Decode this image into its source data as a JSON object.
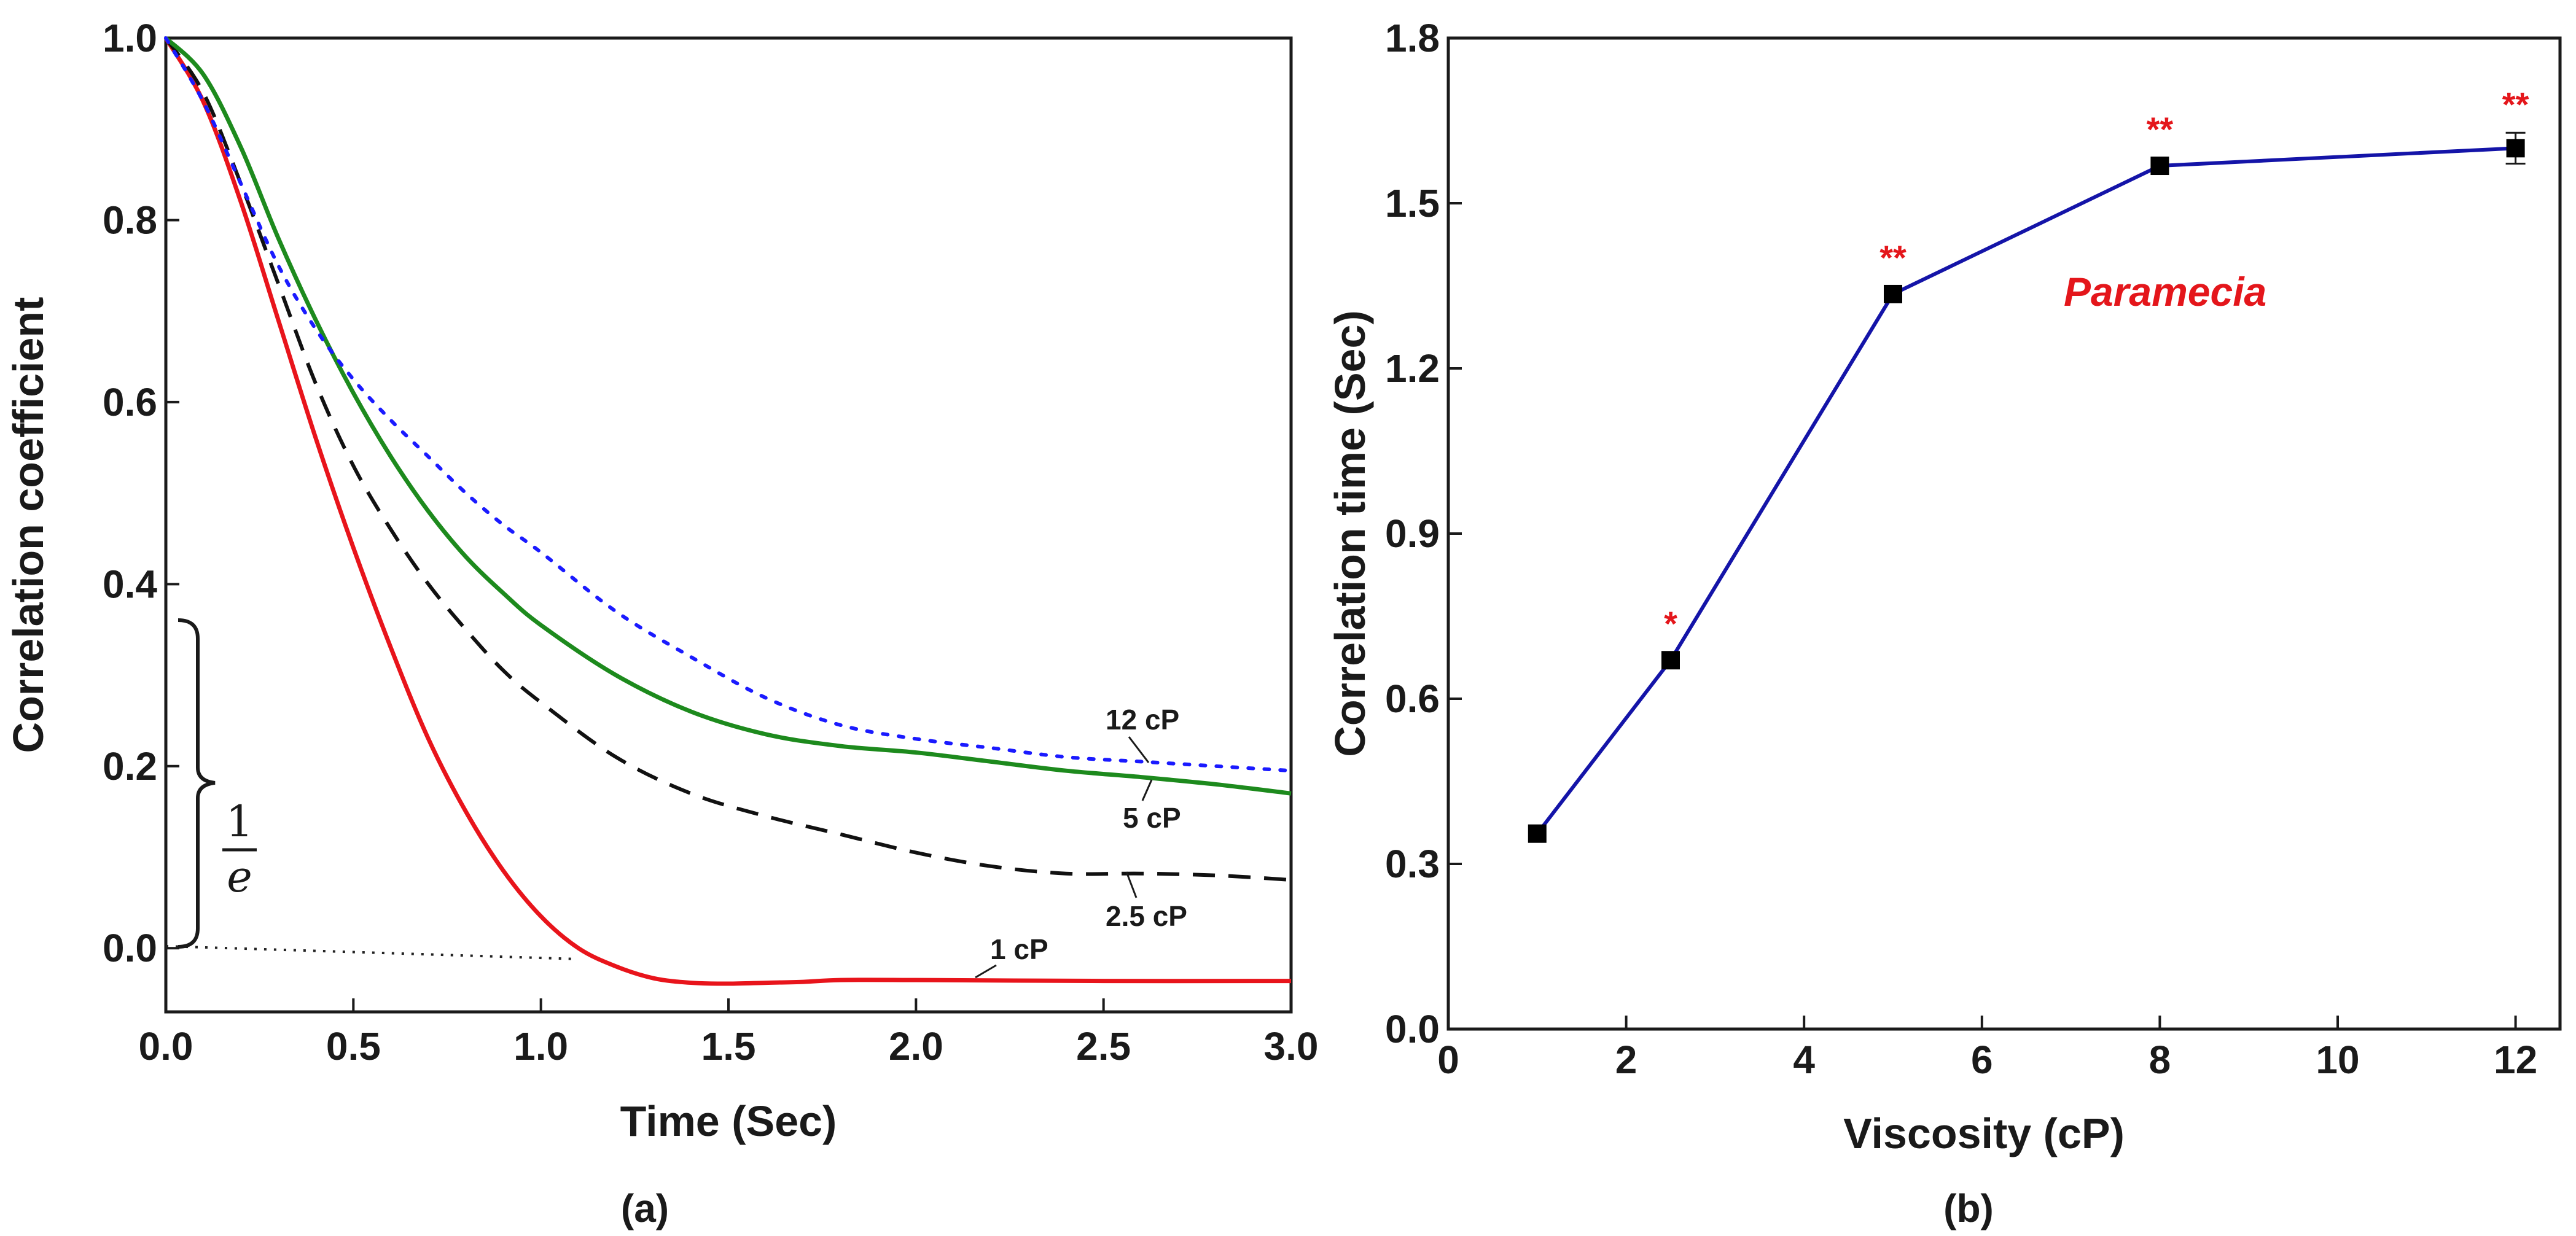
{
  "chart_data": [
    {
      "type": "line",
      "panel_label": "(a)",
      "xlabel": "Time (Sec)",
      "ylabel": "Correlation coefficient",
      "xlim": [
        0.0,
        3.0
      ],
      "ylim": [
        -0.07,
        1.0
      ],
      "xticks": [
        "0.0",
        "0.5",
        "1.0",
        "1.5",
        "2.0",
        "2.5",
        "3.0"
      ],
      "yticks": [
        "0.0",
        "0.2",
        "0.4",
        "0.6",
        "0.8",
        "1.0"
      ],
      "annotation": {
        "fraction_numerator": "1",
        "fraction_denominator": "e"
      },
      "series": [
        {
          "name": "1 cP",
          "color": "#e8141b",
          "style": "solid",
          "x": [
            0,
            0.1,
            0.2,
            0.3,
            0.4,
            0.5,
            0.6,
            0.7,
            0.8,
            0.9,
            1.0,
            1.1,
            1.2,
            1.3,
            1.4,
            1.5,
            1.6,
            1.7,
            1.8,
            2.0,
            2.5,
            3.0
          ],
          "y": [
            1.0,
            0.93,
            0.82,
            0.69,
            0.56,
            0.44,
            0.33,
            0.23,
            0.15,
            0.085,
            0.035,
            0.0,
            -0.02,
            -0.033,
            -0.038,
            -0.039,
            -0.038,
            -0.037,
            -0.035,
            -0.035,
            -0.036,
            -0.036
          ]
        },
        {
          "name": "2.5 cP",
          "color": "#111111",
          "style": "dashed",
          "x": [
            0,
            0.1,
            0.2,
            0.3,
            0.4,
            0.5,
            0.6,
            0.7,
            0.8,
            0.9,
            1.0,
            1.2,
            1.4,
            1.6,
            1.8,
            2.0,
            2.2,
            2.4,
            2.6,
            2.8,
            3.0
          ],
          "y": [
            1.0,
            0.94,
            0.84,
            0.73,
            0.62,
            0.53,
            0.46,
            0.4,
            0.35,
            0.305,
            0.27,
            0.21,
            0.17,
            0.145,
            0.125,
            0.105,
            0.09,
            0.082,
            0.082,
            0.08,
            0.075
          ]
        },
        {
          "name": "5 cP",
          "color": "#1d8a1d",
          "style": "solid",
          "x": [
            0,
            0.1,
            0.2,
            0.3,
            0.4,
            0.5,
            0.6,
            0.7,
            0.8,
            0.9,
            1.0,
            1.2,
            1.4,
            1.6,
            1.8,
            2.0,
            2.2,
            2.4,
            2.6,
            2.8,
            3.0
          ],
          "y": [
            1.0,
            0.96,
            0.88,
            0.78,
            0.69,
            0.61,
            0.54,
            0.48,
            0.43,
            0.39,
            0.355,
            0.3,
            0.26,
            0.235,
            0.222,
            0.215,
            0.205,
            0.195,
            0.188,
            0.18,
            0.17
          ]
        },
        {
          "name": "12 cP",
          "color": "#1a1aff",
          "style": "dotted",
          "x": [
            0,
            0.1,
            0.2,
            0.3,
            0.4,
            0.5,
            0.6,
            0.7,
            0.8,
            0.9,
            1.0,
            1.2,
            1.4,
            1.6,
            1.8,
            2.0,
            2.2,
            2.4,
            2.6,
            2.8,
            3.0
          ],
          "y": [
            1.0,
            0.93,
            0.84,
            0.75,
            0.68,
            0.625,
            0.58,
            0.54,
            0.5,
            0.465,
            0.435,
            0.37,
            0.32,
            0.275,
            0.245,
            0.23,
            0.22,
            0.21,
            0.205,
            0.2,
            0.195
          ]
        }
      ]
    },
    {
      "type": "line",
      "panel_label": "(b)",
      "xlabel": "Viscosity (cP)",
      "ylabel": "Correlation time (Sec)",
      "xlim": [
        0,
        12.5
      ],
      "ylim": [
        0.0,
        1.8
      ],
      "xticks": [
        "0",
        "2",
        "4",
        "6",
        "8",
        "10",
        "12"
      ],
      "yticks": [
        "0.0",
        "0.3",
        "0.6",
        "0.9",
        "1.2",
        "1.5",
        "1.8"
      ],
      "annotation": "Paramecia",
      "line_color": "#1414a8",
      "points": [
        {
          "x": 1,
          "y": 0.355,
          "err": 0.0,
          "sig": ""
        },
        {
          "x": 2.5,
          "y": 0.67,
          "err": 0.0,
          "sig": "*"
        },
        {
          "x": 5,
          "y": 1.335,
          "err": 0.0,
          "sig": "**"
        },
        {
          "x": 8,
          "y": 1.568,
          "err": 0.0,
          "sig": "**"
        },
        {
          "x": 12,
          "y": 1.6,
          "err": 0.028,
          "sig": "**"
        }
      ]
    }
  ]
}
